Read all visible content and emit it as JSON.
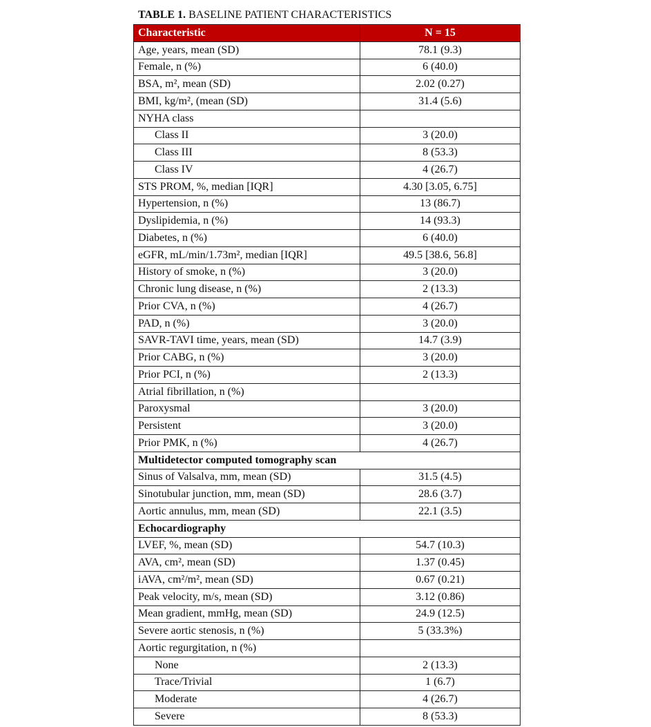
{
  "title": {
    "bold": "TABLE 1.",
    "text": " BASELINE PATIENT CHARACTERISTICS"
  },
  "header": {
    "characteristic": "Characteristic",
    "value": "N = 15",
    "color": "#C00000"
  },
  "rows": [
    {
      "label": "Age, years, mean (SD)",
      "value": "78.1 (9.3)"
    },
    {
      "label": "Female, n (%)",
      "value": "6 (40.0)"
    },
    {
      "label": "BSA, m², mean (SD)",
      "value": "2.02 (0.27)"
    },
    {
      "label": "BMI, kg/m², (mean (SD)",
      "value": "31.4 (5.6)"
    },
    {
      "label": "NYHA class",
      "value": ""
    },
    {
      "label": "Class II",
      "value": "3 (20.0)",
      "indent": true
    },
    {
      "label": "Class III",
      "value": "8 (53.3)",
      "indent": true
    },
    {
      "label": "Class IV",
      "value": "4 (26.7)",
      "indent": true
    },
    {
      "label": "STS PROM, %, median [IQR]",
      "value": "4.30 [3.05, 6.75]"
    },
    {
      "label": "Hypertension, n (%)",
      "value": "13 (86.7)"
    },
    {
      "label": "Dyslipidemia, n (%)",
      "value": "14 (93.3)"
    },
    {
      "label": "Diabetes, n (%)",
      "value": "6 (40.0)"
    },
    {
      "label": "eGFR, mL/min/1.73m², median [IQR]",
      "value": "49.5 [38.6, 56.8]"
    },
    {
      "label": "History of smoke, n (%)",
      "value": "3 (20.0)"
    },
    {
      "label": "Chronic lung disease, n (%)",
      "value": "2 (13.3)"
    },
    {
      "label": "Prior CVA, n (%)",
      "value": "4 (26.7)"
    },
    {
      "label": "PAD, n (%)",
      "value": "3 (20.0)"
    },
    {
      "label": "SAVR-TAVI time, years, mean (SD)",
      "value": "14.7 (3.9)"
    },
    {
      "label": "Prior CABG, n (%)",
      "value": "3 (20.0)"
    },
    {
      "label": "Prior PCI, n (%)",
      "value": "2 (13.3)"
    },
    {
      "label": "Atrial fibrillation, n (%)",
      "value": ""
    },
    {
      "label": "Paroxysmal",
      "value": "3 (20.0)"
    },
    {
      "label": "Persistent",
      "value": "3 (20.0)"
    },
    {
      "label": "Prior PMK, n (%)",
      "value": "4 (26.7)"
    },
    {
      "label": "Multidetector computed tomography scan",
      "section": true
    },
    {
      "label": "Sinus of Valsalva, mm, mean (SD)",
      "value": "31.5 (4.5)"
    },
    {
      "label": "Sinotubular junction, mm, mean (SD)",
      "value": "28.6 (3.7)"
    },
    {
      "label": "Aortic annulus, mm, mean (SD)",
      "value": "22.1 (3.5)"
    },
    {
      "label": "Echocardiography",
      "section": true
    },
    {
      "label": "LVEF, %, mean (SD)",
      "value": "54.7 (10.3)"
    },
    {
      "label": "AVA, cm², mean (SD)",
      "value": "1.37 (0.45)"
    },
    {
      "label": "iAVA, cm²/m², mean (SD)",
      "value": "0.67 (0.21)"
    },
    {
      "label": "Peak velocity, m/s, mean (SD)",
      "value": "3.12 (0.86)"
    },
    {
      "label": "Mean gradient, mmHg, mean (SD)",
      "value": "24.9 (12.5)"
    },
    {
      "label": "Severe aortic stenosis, n (%)",
      "value": "5 (33.3%)"
    },
    {
      "label": "Aortic regurgitation, n (%)",
      "value": ""
    },
    {
      "label": "None",
      "value": "2 (13.3)",
      "indent": true
    },
    {
      "label": "Trace/Trivial",
      "value": "1 (6.7)",
      "indent": true
    },
    {
      "label": "Moderate",
      "value": "4 (26.7)",
      "indent": true
    },
    {
      "label": "Severe",
      "value": "8 (53.3)",
      "indent": true
    }
  ]
}
